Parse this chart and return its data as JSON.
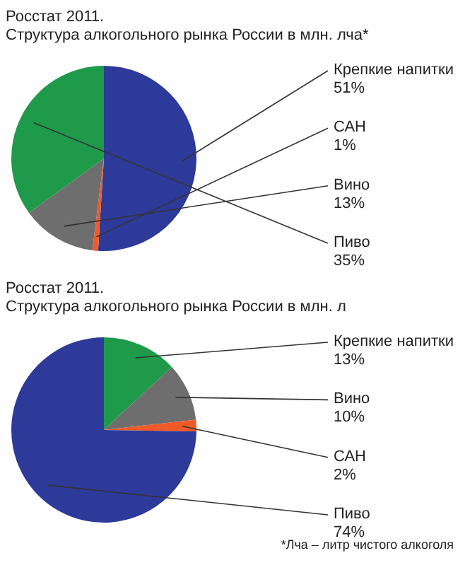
{
  "chart_data": [
    {
      "type": "pie",
      "title": "Росстат 2011.",
      "subtitle": "Структура алкогольного рынка России в млн. лча*",
      "categories": [
        "Крепкие напитки",
        "САН",
        "Вино",
        "Пиво"
      ],
      "values": [
        51,
        1,
        13,
        35
      ],
      "value_labels": [
        "51%",
        "1%",
        "13%",
        "35%"
      ],
      "colors": [
        "#2e3a9a",
        "#f05a28",
        "#6e6e6e",
        "#1f9a4a"
      ]
    },
    {
      "type": "pie",
      "title": "Росстат 2011.",
      "subtitle": "Структура алкогольного рынка России в млн. л",
      "categories": [
        "Крепкие напитки",
        "Вино",
        "САН",
        "Пиво"
      ],
      "values": [
        13,
        10,
        2,
        74
      ],
      "value_labels": [
        "13%",
        "10%",
        "2%",
        "74%"
      ],
      "colors": [
        "#1f9a4a",
        "#6e6e6e",
        "#f05a28",
        "#2e3a9a"
      ],
      "annotations": [
        "*Лча – литр чистого алкоголя"
      ]
    }
  ]
}
